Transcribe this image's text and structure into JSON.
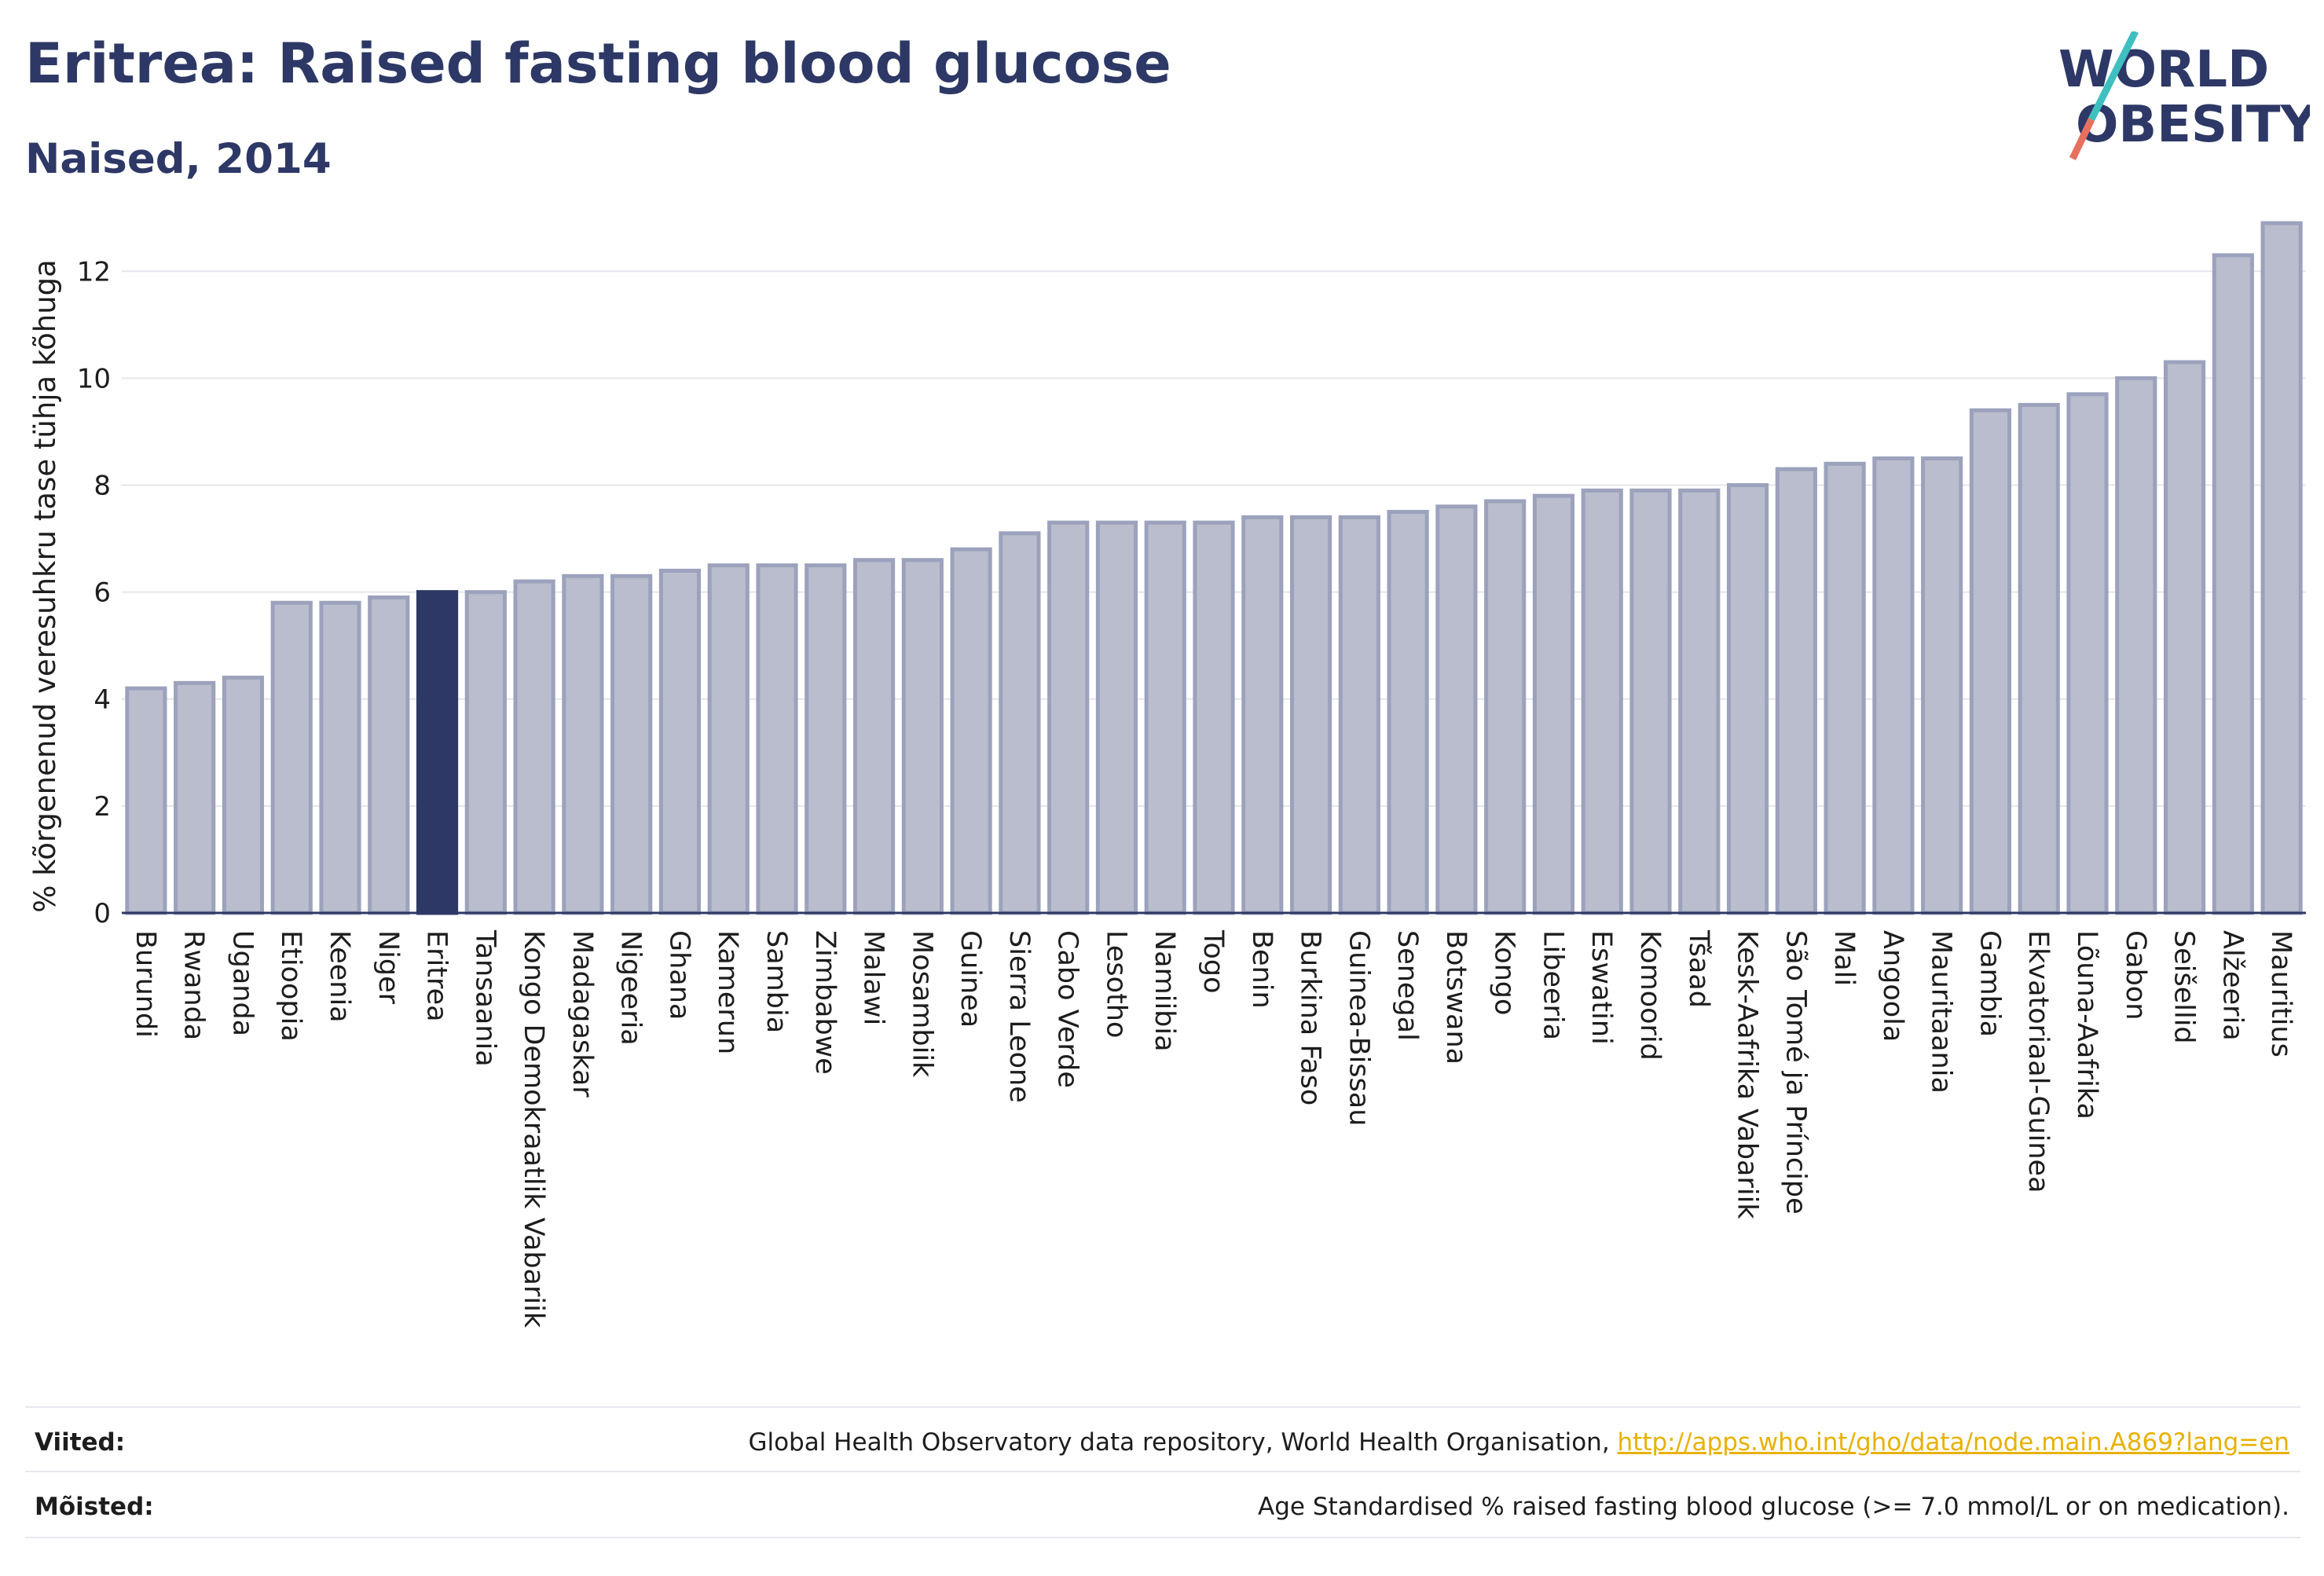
{
  "header": {
    "title": "Eritrea: Raised fasting blood glucose",
    "subtitle": "Naised, 2014",
    "logo_line1": "WORLD",
    "logo_line2": "OBESITY"
  },
  "colors": {
    "bar": "#b9bdcd",
    "bar_stroke": "#9ca2bc",
    "highlight": "#2d3866",
    "text": "#2d3866",
    "link": "#e8b100"
  },
  "chart_data": {
    "type": "bar",
    "ylabel": "% kõrgenenud veresuhkru tase tühja kõhuga",
    "ylim": [
      0,
      13.4
    ],
    "yticks": [
      0,
      2,
      4,
      6,
      8,
      10,
      12
    ],
    "grid": true,
    "highlight": "Eritrea",
    "categories": [
      "Burundi",
      "Rwanda",
      "Uganda",
      "Etioopia",
      "Keenia",
      "Niger",
      "Eritrea",
      "Tansaania",
      "Kongo Demokraatlik Vabariik",
      "Madagaskar",
      "Nigeeria",
      "Ghana",
      "Kamerun",
      "Sambia",
      "Zimbabwe",
      "Malawi",
      "Mosambiik",
      "Guinea",
      "Sierra Leone",
      "Cabo Verde",
      "Lesotho",
      "Namiibia",
      "Togo",
      "Benin",
      "Burkina Faso",
      "Guinea-Bissau",
      "Senegal",
      "Botswana",
      "Kongo",
      "Libeeria",
      "Eswatini",
      "Komoorid",
      "Tšaad",
      "Kesk-Aafrika Vabariik",
      "São Tomé ja Príncipe",
      "Mali",
      "Angoola",
      "Mauritaania",
      "Gambia",
      "Ekvatoriaal-Guinea",
      "Lõuna-Aafrika",
      "Gabon",
      "Seišellid",
      "Alžeeria",
      "Mauritius"
    ],
    "values": [
      4.2,
      4.3,
      4.4,
      5.8,
      5.8,
      5.9,
      6.0,
      6.0,
      6.2,
      6.3,
      6.3,
      6.4,
      6.5,
      6.5,
      6.5,
      6.6,
      6.6,
      6.8,
      7.1,
      7.3,
      7.3,
      7.3,
      7.3,
      7.4,
      7.4,
      7.4,
      7.5,
      7.6,
      7.7,
      7.8,
      7.9,
      7.9,
      7.9,
      8.0,
      8.3,
      8.4,
      8.5,
      8.5,
      9.4,
      9.5,
      9.7,
      10.0,
      10.3,
      12.3,
      12.9
    ]
  },
  "footer": {
    "sources_label": "Viited:",
    "sources_text": "Global Health Observatory data repository, World Health Organisation, ",
    "sources_link": "http://apps.who.int/gho/data/node.main.A869?lang=en",
    "definitions_label": "Mõisted:",
    "definitions_text": "Age Standardised % raised fasting blood glucose (>= 7.0 mmol/L or on medication)."
  }
}
